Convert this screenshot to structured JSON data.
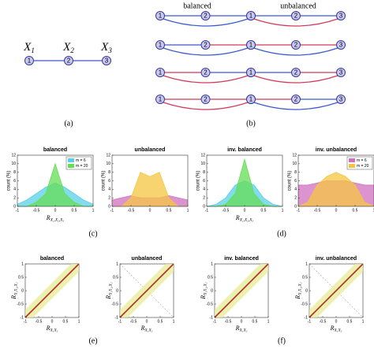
{
  "panel_a": {
    "nodes": [
      {
        "var": "X",
        "sub": "1",
        "label": "1"
      },
      {
        "var": "X",
        "sub": "2",
        "label": "2"
      },
      {
        "var": "X",
        "sub": "3",
        "label": "3"
      }
    ],
    "caption": "(a)"
  },
  "panel_b": {
    "headers": [
      "balanced",
      "unbalanced"
    ],
    "node_labels": [
      "1",
      "2",
      "3"
    ],
    "caption": "(b)"
  },
  "histograms": [
    {
      "title": "balanced",
      "ylabel": "count (%)",
      "xlabel": {
        "main": "R",
        "sub": "X₁,X₂,X₃"
      },
      "xlim": [
        -1,
        1
      ],
      "xticks": [
        -1,
        -0.5,
        0,
        0.5,
        1
      ],
      "ylim": [
        0,
        12
      ],
      "yticks": [
        0,
        2,
        4,
        6,
        8,
        10,
        12
      ],
      "legend": true,
      "x": [
        -1,
        -0.75,
        -0.5,
        -0.25,
        0,
        0.25,
        0.5,
        0.75,
        1
      ],
      "series": [
        {
          "name": "m = 6",
          "color": "#5ad0e8",
          "values": [
            0.5,
            1.5,
            3,
            4.5,
            5.5,
            4.5,
            3,
            1.5,
            0.5
          ]
        },
        {
          "name": "m = 20",
          "color": "#66dd55",
          "values": [
            0,
            0,
            1,
            3,
            10,
            3,
            1,
            0,
            0
          ]
        }
      ]
    },
    {
      "title": "unbalanced",
      "ylabel": "count (%)",
      "xlim": [
        -1,
        1
      ],
      "xticks": [
        -1,
        -0.5,
        0,
        0.5,
        1
      ],
      "ylim": [
        0,
        12
      ],
      "yticks": [
        0,
        2,
        4,
        6,
        8,
        10,
        12
      ],
      "legend": false,
      "x": [
        -1,
        -0.75,
        -0.5,
        -0.25,
        0,
        0.25,
        0.5,
        0.75,
        1
      ],
      "series": [
        {
          "name": "m = 6",
          "color": "#d070c0",
          "values": [
            1.5,
            2,
            2.5,
            2,
            2,
            2,
            2.5,
            2,
            1.5
          ]
        },
        {
          "name": "m = 20",
          "color": "#f5c542",
          "values": [
            0,
            0,
            2,
            8,
            7,
            8,
            2,
            0,
            0
          ]
        }
      ]
    },
    {
      "title": "inv. balanced",
      "ylabel": "count (%)",
      "xlabel": {
        "main": "R",
        "sub": "X₁,X₂,X₃"
      },
      "xlim": [
        -1,
        1
      ],
      "xticks": [
        -1,
        -0.5,
        0,
        0.5,
        1
      ],
      "ylim": [
        0,
        12
      ],
      "yticks": [
        0,
        2,
        4,
        6,
        8,
        10,
        12
      ],
      "legend": false,
      "x": [
        -1,
        -0.75,
        -0.5,
        -0.25,
        0,
        0.25,
        0.5,
        0.75,
        1
      ],
      "series": [
        {
          "name": "m = 6",
          "color": "#5ad0e8",
          "values": [
            0,
            0.5,
            2,
            5,
            6,
            5,
            2,
            0.5,
            0
          ]
        },
        {
          "name": "m = 20",
          "color": "#66dd55",
          "values": [
            0,
            0,
            0.5,
            3,
            11,
            3,
            0.5,
            0,
            0
          ]
        }
      ]
    },
    {
      "title": "inv. unbalanced",
      "ylabel": "count (%)",
      "xlim": [
        -1,
        1
      ],
      "xticks": [
        -1,
        -0.5,
        0,
        0.5,
        1
      ],
      "ylim": [
        0,
        12
      ],
      "yticks": [
        0,
        2,
        4,
        6,
        8,
        10,
        12
      ],
      "legend": true,
      "x": [
        -1,
        -0.75,
        -0.5,
        -0.25,
        0,
        0.25,
        0.5,
        0.75,
        1
      ],
      "series": [
        {
          "name": "m = 6",
          "color": "#d070c0",
          "values": [
            5,
            5,
            5.5,
            6,
            6,
            6,
            5.5,
            5,
            5
          ]
        },
        {
          "name": "m = 20",
          "color": "#f5c542",
          "values": [
            0,
            1,
            5,
            7,
            8,
            7,
            5,
            1,
            0
          ]
        }
      ]
    }
  ],
  "hist_captions": [
    "(c)",
    "(d)"
  ],
  "scatters": [
    {
      "title": "balanced",
      "xlabel": {
        "main": "R",
        "sub": "X₁X₃"
      },
      "ylabel": {
        "main": "R",
        "sub": "X₁X₂,X₃"
      },
      "xlim": [
        -1,
        1
      ],
      "xticks": [
        -1,
        -0.5,
        0,
        0.5,
        1
      ],
      "ylim": [
        -1,
        1
      ],
      "yticks": [
        -1,
        -0.5,
        0,
        0.5,
        1
      ]
    },
    {
      "title": "unbalanced",
      "xlabel": {
        "main": "R",
        "sub": "X₁X₃"
      },
      "ylabel": {
        "main": "R",
        "sub": "X₁X₂,X₃"
      },
      "xlim": [
        -1,
        1
      ],
      "xticks": [
        -1,
        -0.5,
        0,
        0.5,
        1
      ],
      "ylim": [
        -1,
        1
      ],
      "yticks": [
        -1,
        -0.5,
        0,
        0.5,
        1
      ]
    },
    {
      "title": "inv. balanced",
      "xlabel": {
        "main": "R",
        "sub": "X₁X₃"
      },
      "ylabel": {
        "main": "R",
        "sub": "X₁X₂,X₃"
      },
      "xlim": [
        -1,
        1
      ],
      "xticks": [
        -1,
        -0.5,
        0,
        0.5,
        1
      ],
      "ylim": [
        -1,
        1
      ],
      "yticks": [
        -1,
        -0.5,
        0,
        0.5,
        1
      ]
    },
    {
      "title": "inv. unbalanced",
      "xlabel": {
        "main": "R",
        "sub": "X₁X₃"
      },
      "ylabel": {
        "main": "R",
        "sub": "X₁X₂,X₃"
      },
      "xlim": [
        -1,
        1
      ],
      "xticks": [
        -1,
        -0.5,
        0,
        0.5,
        1
      ],
      "ylim": [
        -1,
        1
      ],
      "yticks": [
        -1,
        -0.5,
        0,
        0.5,
        1
      ]
    }
  ],
  "scatter_captions": [
    "(e)",
    "(f)"
  ]
}
